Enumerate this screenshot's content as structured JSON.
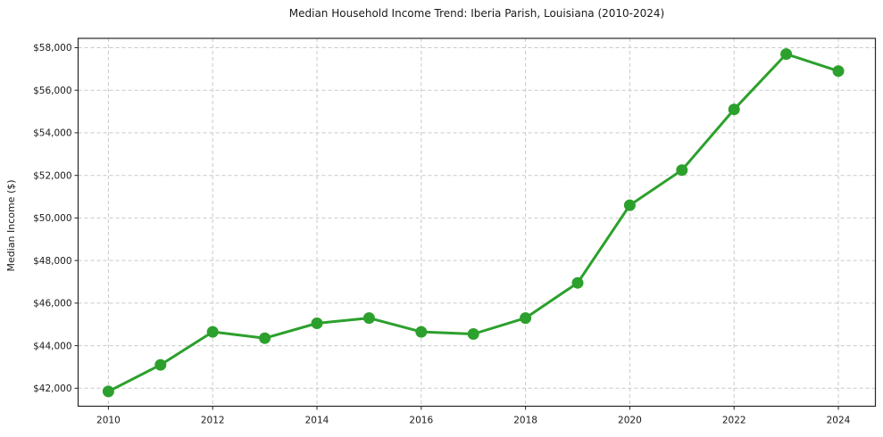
{
  "chart_data": {
    "type": "line",
    "title": "Median Household Income Trend: Iberia Parish, Louisiana (2010-2024)",
    "xlabel": "",
    "ylabel": "Median Income ($)",
    "series_name": "median-household-income",
    "x": [
      2010,
      2011,
      2012,
      2013,
      2014,
      2015,
      2016,
      2017,
      2018,
      2019,
      2020,
      2021,
      2022,
      2023,
      2024
    ],
    "values": [
      41850,
      43100,
      44650,
      44350,
      45050,
      45300,
      44650,
      44550,
      45300,
      46950,
      50600,
      52250,
      55100,
      57700,
      56900
    ],
    "xlim": [
      2009.42,
      2024.71
    ],
    "ylim": [
      41154,
      58439
    ],
    "xtick_values": [
      2010,
      2012,
      2014,
      2016,
      2018,
      2020,
      2022,
      2024
    ],
    "xtick_labels": [
      "2010",
      "2012",
      "2014",
      "2016",
      "2018",
      "2020",
      "2022",
      "2024"
    ],
    "ytick_values": [
      42000,
      44000,
      46000,
      48000,
      50000,
      52000,
      54000,
      56000,
      58000
    ],
    "ytick_labels": [
      "$42,000",
      "$44,000",
      "$46,000",
      "$48,000",
      "$50,000",
      "$52,000",
      "$54,000",
      "$56,000",
      "$58,000"
    ],
    "grid": true,
    "grid_style": "dashed",
    "legend_position": "none",
    "marker": "circle",
    "colors": {
      "line": "#2ca02c",
      "grid": "#c9c9c9",
      "axis": "#262626",
      "text": "#1a1a1a",
      "background": "#ffffff"
    }
  }
}
